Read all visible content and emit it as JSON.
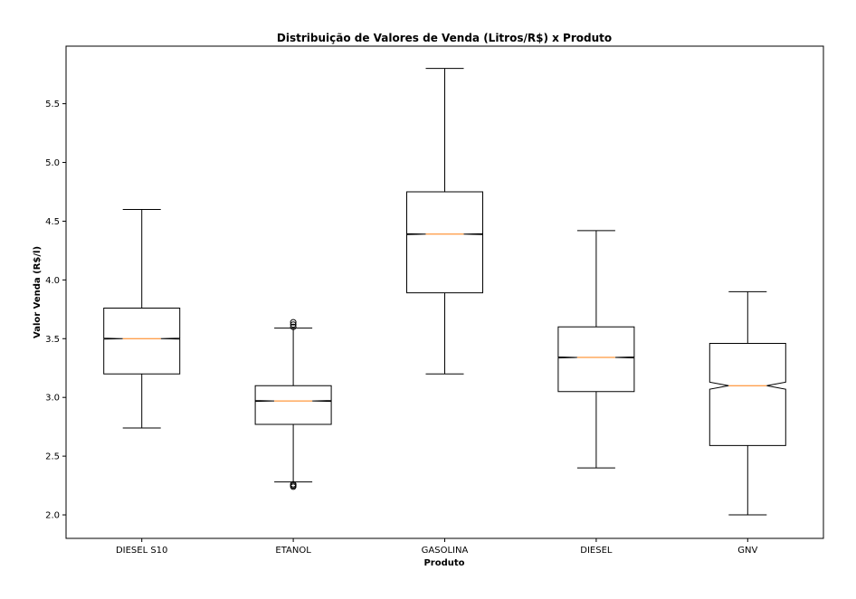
{
  "chart_data": {
    "type": "boxplot",
    "title": "Distribuição de Valores de Venda (Litros/R$) x Produto",
    "xlabel": "Produto",
    "ylabel": "Valor Venda (R$/l)",
    "ylim": [
      1.8,
      5.99
    ],
    "yticks": [
      "2.0",
      "2.5",
      "3.0",
      "3.5",
      "4.0",
      "4.5",
      "5.0",
      "5.5"
    ],
    "notched": true,
    "grid": false,
    "colors": {
      "box": "#000000",
      "median": "#ff7f0e",
      "background": "#ffffff"
    },
    "categories": [
      "DIESEL S10",
      "ETANOL",
      "GASOLINA",
      "DIESEL",
      "GNV"
    ],
    "boxes": [
      {
        "whisker_low": 2.74,
        "q1": 3.2,
        "median": 3.5,
        "q3": 3.76,
        "whisker_high": 4.6,
        "notch_low": 3.496,
        "notch_high": 3.504,
        "outliers": []
      },
      {
        "whisker_low": 2.28,
        "q1": 2.77,
        "median": 2.97,
        "q3": 3.1,
        "whisker_high": 3.59,
        "notch_low": 2.966,
        "notch_high": 2.974,
        "outliers": [
          2.24,
          2.25,
          2.26,
          3.6,
          3.62,
          3.64
        ]
      },
      {
        "whisker_low": 3.2,
        "q1": 3.89,
        "median": 4.39,
        "q3": 4.75,
        "whisker_high": 5.8,
        "notch_low": 4.386,
        "notch_high": 4.394,
        "outliers": []
      },
      {
        "whisker_low": 2.4,
        "q1": 3.05,
        "median": 3.34,
        "q3": 3.6,
        "whisker_high": 4.42,
        "notch_low": 3.336,
        "notch_high": 3.344,
        "outliers": []
      },
      {
        "whisker_low": 2.0,
        "q1": 2.59,
        "median": 3.1,
        "q3": 3.46,
        "whisker_high": 3.9,
        "notch_low": 3.07,
        "notch_high": 3.13,
        "outliers": []
      }
    ]
  }
}
